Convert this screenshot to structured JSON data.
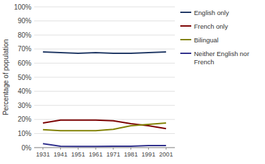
{
  "chart_data": {
    "type": "line",
    "x": [
      1931,
      1941,
      1951,
      1961,
      1971,
      1981,
      1991,
      2001
    ],
    "series": [
      {
        "name": "English only",
        "color": "#203864",
        "values": [
          68.0,
          67.5,
          67.0,
          67.5,
          67.0,
          67.0,
          67.5,
          68.0
        ]
      },
      {
        "name": "French only",
        "color": "#7b0000",
        "values": [
          17.5,
          19.5,
          19.5,
          19.5,
          19.0,
          17.0,
          15.5,
          13.5
        ]
      },
      {
        "name": "Bilingual",
        "color": "#808000",
        "values": [
          12.8,
          12.0,
          12.0,
          12.0,
          13.0,
          15.5,
          16.5,
          17.5
        ]
      },
      {
        "name": "Neither English nor\nFrench",
        "color": "#2e2e8b",
        "values": [
          2.8,
          1.0,
          0.8,
          0.8,
          1.0,
          1.0,
          1.5,
          1.5
        ]
      }
    ],
    "y_label": "Percentage of population",
    "xlim": [
      1926,
      2006
    ],
    "xticks": [
      1931,
      1941,
      1951,
      1961,
      1971,
      1981,
      1991,
      2001
    ],
    "ylim": [
      0,
      100
    ],
    "yticks": [
      {
        "value": 0,
        "label": "0%"
      },
      {
        "value": 10,
        "label": "10%"
      },
      {
        "value": 20,
        "label": "20%"
      },
      {
        "value": 30,
        "label": "30%"
      },
      {
        "value": 40,
        "label": "40%"
      },
      {
        "value": 50,
        "label": "50%"
      },
      {
        "value": 60,
        "label": "60%"
      },
      {
        "value": 70,
        "label": "70%"
      },
      {
        "value": 80,
        "label": "80%"
      },
      {
        "value": 90,
        "label": "90%"
      },
      {
        "value": 100,
        "label": "100%"
      }
    ],
    "grid": true,
    "legend": "right"
  }
}
